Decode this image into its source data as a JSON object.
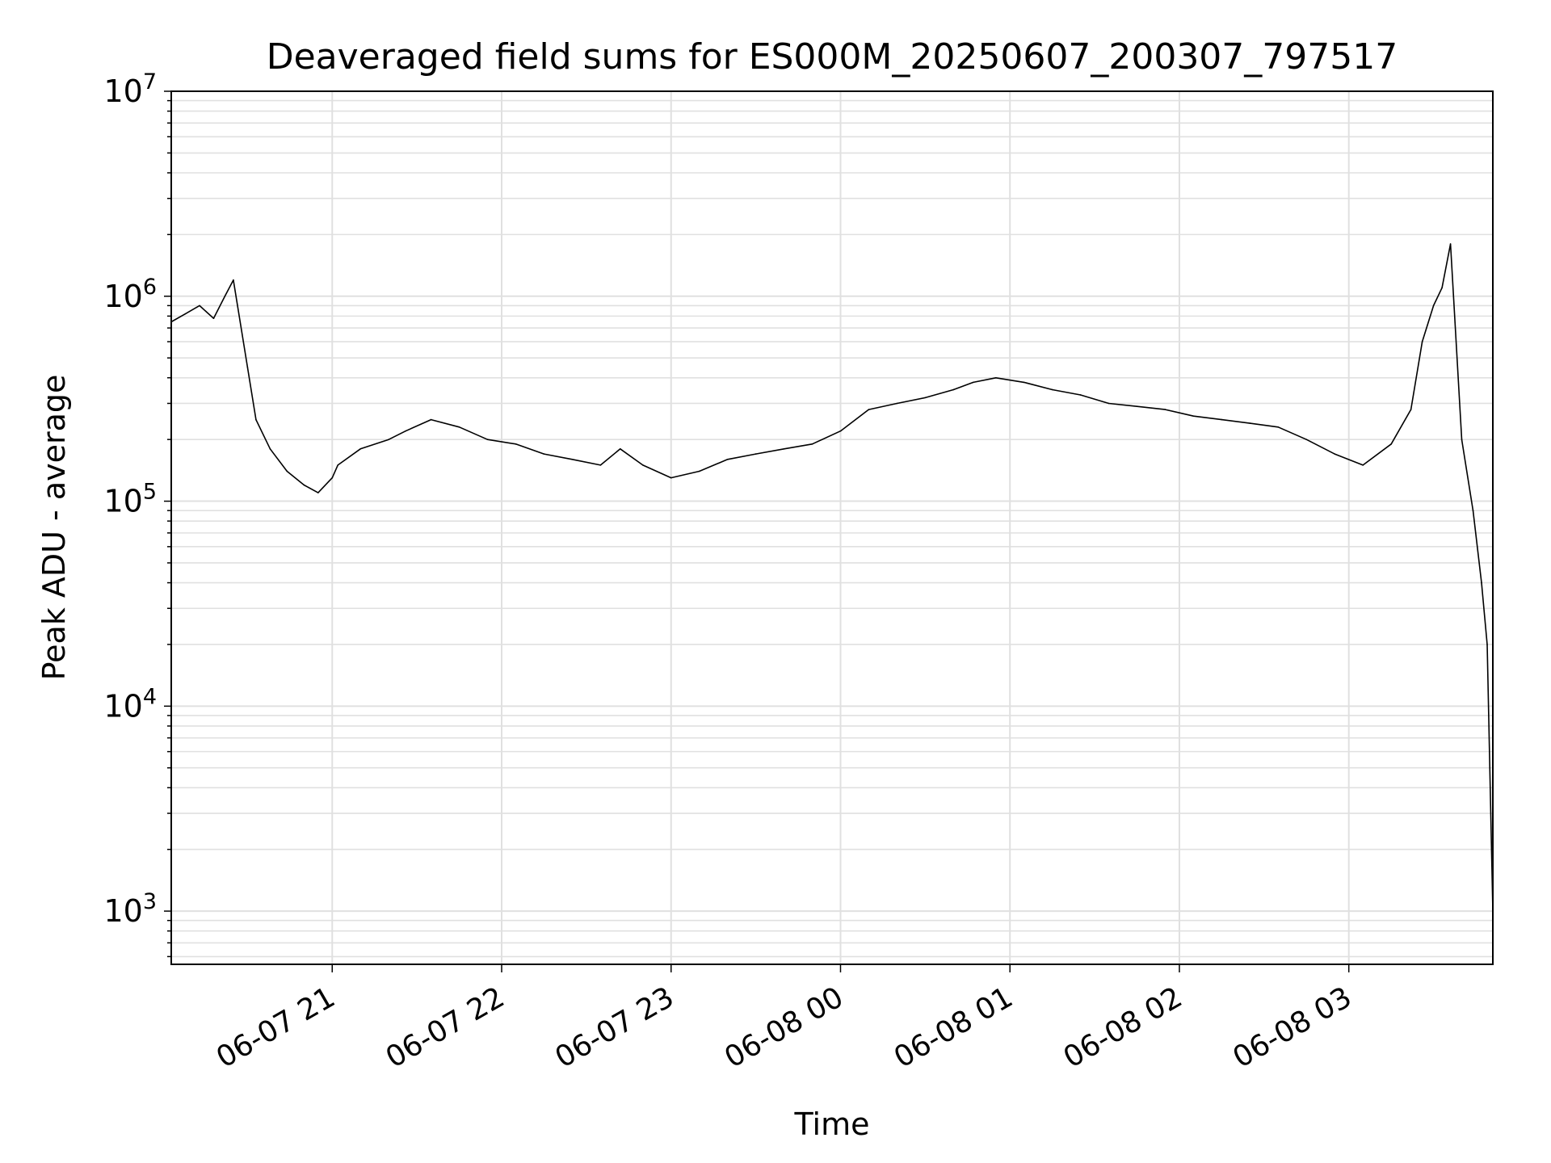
{
  "chart_data": {
    "type": "line",
    "title": "Deaveraged field sums for ES000M_20250607_200307_797517",
    "xlabel": "Time",
    "ylabel": "Peak ADU - average",
    "yscale": "log",
    "ylim": [
      550,
      10000000
    ],
    "xlim": [
      "2025-06-07T20:03:00",
      "2025-06-08T03:51:00"
    ],
    "grid": true,
    "xticks": [
      {
        "t": "2025-06-07T21:00:00",
        "label": "06-07 21"
      },
      {
        "t": "2025-06-07T22:00:00",
        "label": "06-07 22"
      },
      {
        "t": "2025-06-07T23:00:00",
        "label": "06-07 23"
      },
      {
        "t": "2025-06-08T00:00:00",
        "label": "06-08 00"
      },
      {
        "t": "2025-06-08T01:00:00",
        "label": "06-08 01"
      },
      {
        "t": "2025-06-08T02:00:00",
        "label": "06-08 02"
      },
      {
        "t": "2025-06-08T03:00:00",
        "label": "06-08 03"
      }
    ],
    "yticks": [
      {
        "value": 1000,
        "base": "10",
        "exp": "3"
      },
      {
        "value": 10000,
        "base": "10",
        "exp": "4"
      },
      {
        "value": 100000,
        "base": "10",
        "exp": "5"
      },
      {
        "value": 1000000,
        "base": "10",
        "exp": "6"
      },
      {
        "value": 10000000,
        "base": "10",
        "exp": "7"
      }
    ],
    "line_color": "#000000",
    "grid_color": "#e0e0e0",
    "series": [
      {
        "x": [
          "2025-06-07T20:03:00",
          "2025-06-07T20:08:00",
          "2025-06-07T20:13:00",
          "2025-06-07T20:18:00",
          "2025-06-07T20:22:00",
          "2025-06-07T20:25:00",
          "2025-06-07T20:30:00",
          "2025-06-07T20:33:00",
          "2025-06-07T20:38:00",
          "2025-06-07T20:44:00",
          "2025-06-07T20:50:00",
          "2025-06-07T20:55:00",
          "2025-06-07T21:00:00",
          "2025-06-07T21:02:00",
          "2025-06-07T21:10:00",
          "2025-06-07T21:20:00",
          "2025-06-07T21:26:00",
          "2025-06-07T21:35:00",
          "2025-06-07T21:45:00",
          "2025-06-07T21:55:00",
          "2025-06-07T22:05:00",
          "2025-06-07T22:15:00",
          "2025-06-07T22:25:00",
          "2025-06-07T22:35:00",
          "2025-06-07T22:42:00",
          "2025-06-07T22:50:00",
          "2025-06-07T23:00:00",
          "2025-06-07T23:10:00",
          "2025-06-07T23:20:00",
          "2025-06-07T23:30:00",
          "2025-06-07T23:40:00",
          "2025-06-07T23:50:00",
          "2025-06-08T00:00:00",
          "2025-06-08T00:10:00",
          "2025-06-08T00:20:00",
          "2025-06-08T00:30:00",
          "2025-06-08T00:40:00",
          "2025-06-08T00:47:00",
          "2025-06-08T00:55:00",
          "2025-06-08T01:05:00",
          "2025-06-08T01:15:00",
          "2025-06-08T01:25:00",
          "2025-06-08T01:35:00",
          "2025-06-08T01:45:00",
          "2025-06-08T01:55:00",
          "2025-06-08T02:05:00",
          "2025-06-08T02:15:00",
          "2025-06-08T02:25:00",
          "2025-06-08T02:35:00",
          "2025-06-08T02:45:00",
          "2025-06-08T02:55:00",
          "2025-06-08T03:05:00",
          "2025-06-08T03:15:00",
          "2025-06-08T03:22:00",
          "2025-06-08T03:26:00",
          "2025-06-08T03:30:00",
          "2025-06-08T03:33:00",
          "2025-06-08T03:36:00",
          "2025-06-08T03:40:00",
          "2025-06-08T03:44:00",
          "2025-06-08T03:47:00",
          "2025-06-08T03:49:00",
          "2025-06-08T03:51:00"
        ],
        "values": [
          750000,
          820000,
          900000,
          780000,
          1000000,
          1200000,
          450000,
          250000,
          180000,
          140000,
          120000,
          110000,
          130000,
          150000,
          180000,
          200000,
          220000,
          250000,
          230000,
          200000,
          190000,
          170000,
          160000,
          150000,
          180000,
          150000,
          130000,
          140000,
          160000,
          170000,
          180000,
          190000,
          220000,
          280000,
          300000,
          320000,
          350000,
          380000,
          400000,
          380000,
          350000,
          330000,
          300000,
          290000,
          280000,
          260000,
          250000,
          240000,
          230000,
          200000,
          170000,
          150000,
          190000,
          280000,
          600000,
          900000,
          1100000,
          1800000,
          200000,
          90000,
          40000,
          20000,
          1000
        ]
      }
    ]
  }
}
